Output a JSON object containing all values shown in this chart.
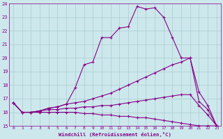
{
  "xlabel": "Windchill (Refroidissement éolien,°C)",
  "ylabel": "",
  "background_color": "#cce8ec",
  "line_color": "#880088",
  "grid_color": "#aacccc",
  "xlim": [
    -0.5,
    23.5
  ],
  "ylim": [
    15,
    24
  ],
  "xticks": [
    0,
    1,
    2,
    3,
    4,
    5,
    6,
    7,
    8,
    9,
    10,
    11,
    12,
    13,
    14,
    15,
    16,
    17,
    18,
    19,
    20,
    21,
    22,
    23
  ],
  "yticks": [
    15,
    16,
    17,
    18,
    19,
    20,
    21,
    22,
    23,
    24
  ],
  "series": [
    {
      "x": [
        0,
        1,
        2,
        3,
        4,
        5,
        6,
        7,
        8,
        9,
        10,
        11,
        12,
        13,
        14,
        15,
        16,
        17,
        18,
        19,
        20,
        21,
        22,
        23
      ],
      "y": [
        16.7,
        16.0,
        16.0,
        16.0,
        16.0,
        16.0,
        16.0,
        16.0,
        15.9,
        15.9,
        15.8,
        15.8,
        15.7,
        15.7,
        15.6,
        15.6,
        15.5,
        15.4,
        15.3,
        15.2,
        15.1,
        15.0,
        15.0,
        15.0
      ]
    },
    {
      "x": [
        0,
        1,
        2,
        3,
        4,
        5,
        6,
        7,
        8,
        9,
        10,
        11,
        12,
        13,
        14,
        15,
        16,
        17,
        18,
        19,
        20,
        21,
        22,
        23
      ],
      "y": [
        16.7,
        16.0,
        16.0,
        16.1,
        16.2,
        16.2,
        16.3,
        16.3,
        16.4,
        16.4,
        16.5,
        16.5,
        16.6,
        16.7,
        16.8,
        16.9,
        17.0,
        17.1,
        17.2,
        17.3,
        17.3,
        16.5,
        15.8,
        15.0
      ]
    },
    {
      "x": [
        0,
        1,
        2,
        3,
        4,
        5,
        6,
        7,
        8,
        9,
        10,
        11,
        12,
        13,
        14,
        15,
        16,
        17,
        18,
        19,
        20,
        21,
        22,
        23
      ],
      "y": [
        16.7,
        16.0,
        16.0,
        16.1,
        16.3,
        16.4,
        16.6,
        16.7,
        16.8,
        17.0,
        17.2,
        17.4,
        17.7,
        18.0,
        18.3,
        18.6,
        18.9,
        19.2,
        19.5,
        19.7,
        20.0,
        17.5,
        16.5,
        15.0
      ]
    },
    {
      "x": [
        0,
        1,
        2,
        3,
        4,
        5,
        6,
        7,
        8,
        9,
        10,
        11,
        12,
        13,
        14,
        15,
        16,
        17,
        18,
        19,
        20,
        21,
        22,
        23
      ],
      "y": [
        16.7,
        16.0,
        16.0,
        16.1,
        16.3,
        16.4,
        16.6,
        17.8,
        19.5,
        19.7,
        21.5,
        21.5,
        22.2,
        22.3,
        23.8,
        23.6,
        23.7,
        23.0,
        21.5,
        20.0,
        20.0,
        16.8,
        16.2,
        15.0
      ]
    }
  ]
}
